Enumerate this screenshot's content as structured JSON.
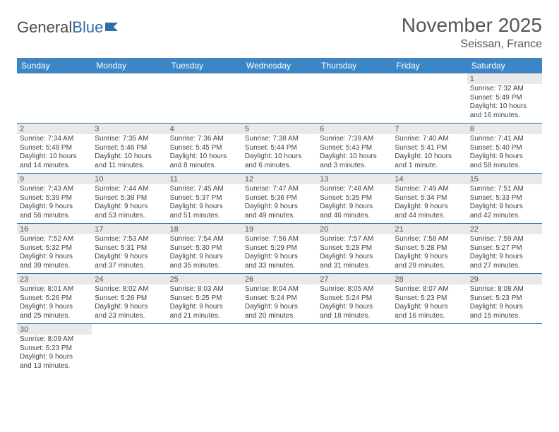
{
  "logo": {
    "part1": "General",
    "part2": "Blue"
  },
  "title": "November 2025",
  "location": "Seissan, France",
  "colors": {
    "header_bg": "#3d86c6",
    "header_text": "#ffffff",
    "cell_border": "#2f6fa8",
    "daynum_bg": "#e9e9e9",
    "text": "#444444",
    "title_text": "#555555"
  },
  "weekdays": [
    "Sunday",
    "Monday",
    "Tuesday",
    "Wednesday",
    "Thursday",
    "Friday",
    "Saturday"
  ],
  "weeks": [
    [
      null,
      null,
      null,
      null,
      null,
      null,
      {
        "n": "1",
        "sunrise": "7:32 AM",
        "sunset": "5:49 PM",
        "day_h": "10",
        "day_m": "16"
      }
    ],
    [
      {
        "n": "2",
        "sunrise": "7:34 AM",
        "sunset": "5:48 PM",
        "day_h": "10",
        "day_m": "14"
      },
      {
        "n": "3",
        "sunrise": "7:35 AM",
        "sunset": "5:46 PM",
        "day_h": "10",
        "day_m": "11"
      },
      {
        "n": "4",
        "sunrise": "7:36 AM",
        "sunset": "5:45 PM",
        "day_h": "10",
        "day_m": "8"
      },
      {
        "n": "5",
        "sunrise": "7:38 AM",
        "sunset": "5:44 PM",
        "day_h": "10",
        "day_m": "6"
      },
      {
        "n": "6",
        "sunrise": "7:39 AM",
        "sunset": "5:43 PM",
        "day_h": "10",
        "day_m": "3"
      },
      {
        "n": "7",
        "sunrise": "7:40 AM",
        "sunset": "5:41 PM",
        "day_h": "10",
        "day_m": "1 minute"
      },
      {
        "n": "8",
        "sunrise": "7:41 AM",
        "sunset": "5:40 PM",
        "day_h": "9",
        "day_m": "58"
      }
    ],
    [
      {
        "n": "9",
        "sunrise": "7:43 AM",
        "sunset": "5:39 PM",
        "day_h": "9",
        "day_m": "56"
      },
      {
        "n": "10",
        "sunrise": "7:44 AM",
        "sunset": "5:38 PM",
        "day_h": "9",
        "day_m": "53"
      },
      {
        "n": "11",
        "sunrise": "7:45 AM",
        "sunset": "5:37 PM",
        "day_h": "9",
        "day_m": "51"
      },
      {
        "n": "12",
        "sunrise": "7:47 AM",
        "sunset": "5:36 PM",
        "day_h": "9",
        "day_m": "49"
      },
      {
        "n": "13",
        "sunrise": "7:48 AM",
        "sunset": "5:35 PM",
        "day_h": "9",
        "day_m": "46"
      },
      {
        "n": "14",
        "sunrise": "7:49 AM",
        "sunset": "5:34 PM",
        "day_h": "9",
        "day_m": "44"
      },
      {
        "n": "15",
        "sunrise": "7:51 AM",
        "sunset": "5:33 PM",
        "day_h": "9",
        "day_m": "42"
      }
    ],
    [
      {
        "n": "16",
        "sunrise": "7:52 AM",
        "sunset": "5:32 PM",
        "day_h": "9",
        "day_m": "39"
      },
      {
        "n": "17",
        "sunrise": "7:53 AM",
        "sunset": "5:31 PM",
        "day_h": "9",
        "day_m": "37"
      },
      {
        "n": "18",
        "sunrise": "7:54 AM",
        "sunset": "5:30 PM",
        "day_h": "9",
        "day_m": "35"
      },
      {
        "n": "19",
        "sunrise": "7:56 AM",
        "sunset": "5:29 PM",
        "day_h": "9",
        "day_m": "33"
      },
      {
        "n": "20",
        "sunrise": "7:57 AM",
        "sunset": "5:28 PM",
        "day_h": "9",
        "day_m": "31"
      },
      {
        "n": "21",
        "sunrise": "7:58 AM",
        "sunset": "5:28 PM",
        "day_h": "9",
        "day_m": "29"
      },
      {
        "n": "22",
        "sunrise": "7:59 AM",
        "sunset": "5:27 PM",
        "day_h": "9",
        "day_m": "27"
      }
    ],
    [
      {
        "n": "23",
        "sunrise": "8:01 AM",
        "sunset": "5:26 PM",
        "day_h": "9",
        "day_m": "25"
      },
      {
        "n": "24",
        "sunrise": "8:02 AM",
        "sunset": "5:26 PM",
        "day_h": "9",
        "day_m": "23"
      },
      {
        "n": "25",
        "sunrise": "8:03 AM",
        "sunset": "5:25 PM",
        "day_h": "9",
        "day_m": "21"
      },
      {
        "n": "26",
        "sunrise": "8:04 AM",
        "sunset": "5:24 PM",
        "day_h": "9",
        "day_m": "20"
      },
      {
        "n": "27",
        "sunrise": "8:05 AM",
        "sunset": "5:24 PM",
        "day_h": "9",
        "day_m": "18"
      },
      {
        "n": "28",
        "sunrise": "8:07 AM",
        "sunset": "5:23 PM",
        "day_h": "9",
        "day_m": "16"
      },
      {
        "n": "29",
        "sunrise": "8:08 AM",
        "sunset": "5:23 PM",
        "day_h": "9",
        "day_m": "15"
      }
    ],
    [
      {
        "n": "30",
        "sunrise": "8:09 AM",
        "sunset": "5:23 PM",
        "day_h": "9",
        "day_m": "13"
      },
      null,
      null,
      null,
      null,
      null,
      null
    ]
  ],
  "labels": {
    "sunrise": "Sunrise:",
    "sunset": "Sunset:",
    "daylight": "Daylight:",
    "hours_word": "hours",
    "and_word": "and",
    "minutes_word": "minutes."
  }
}
